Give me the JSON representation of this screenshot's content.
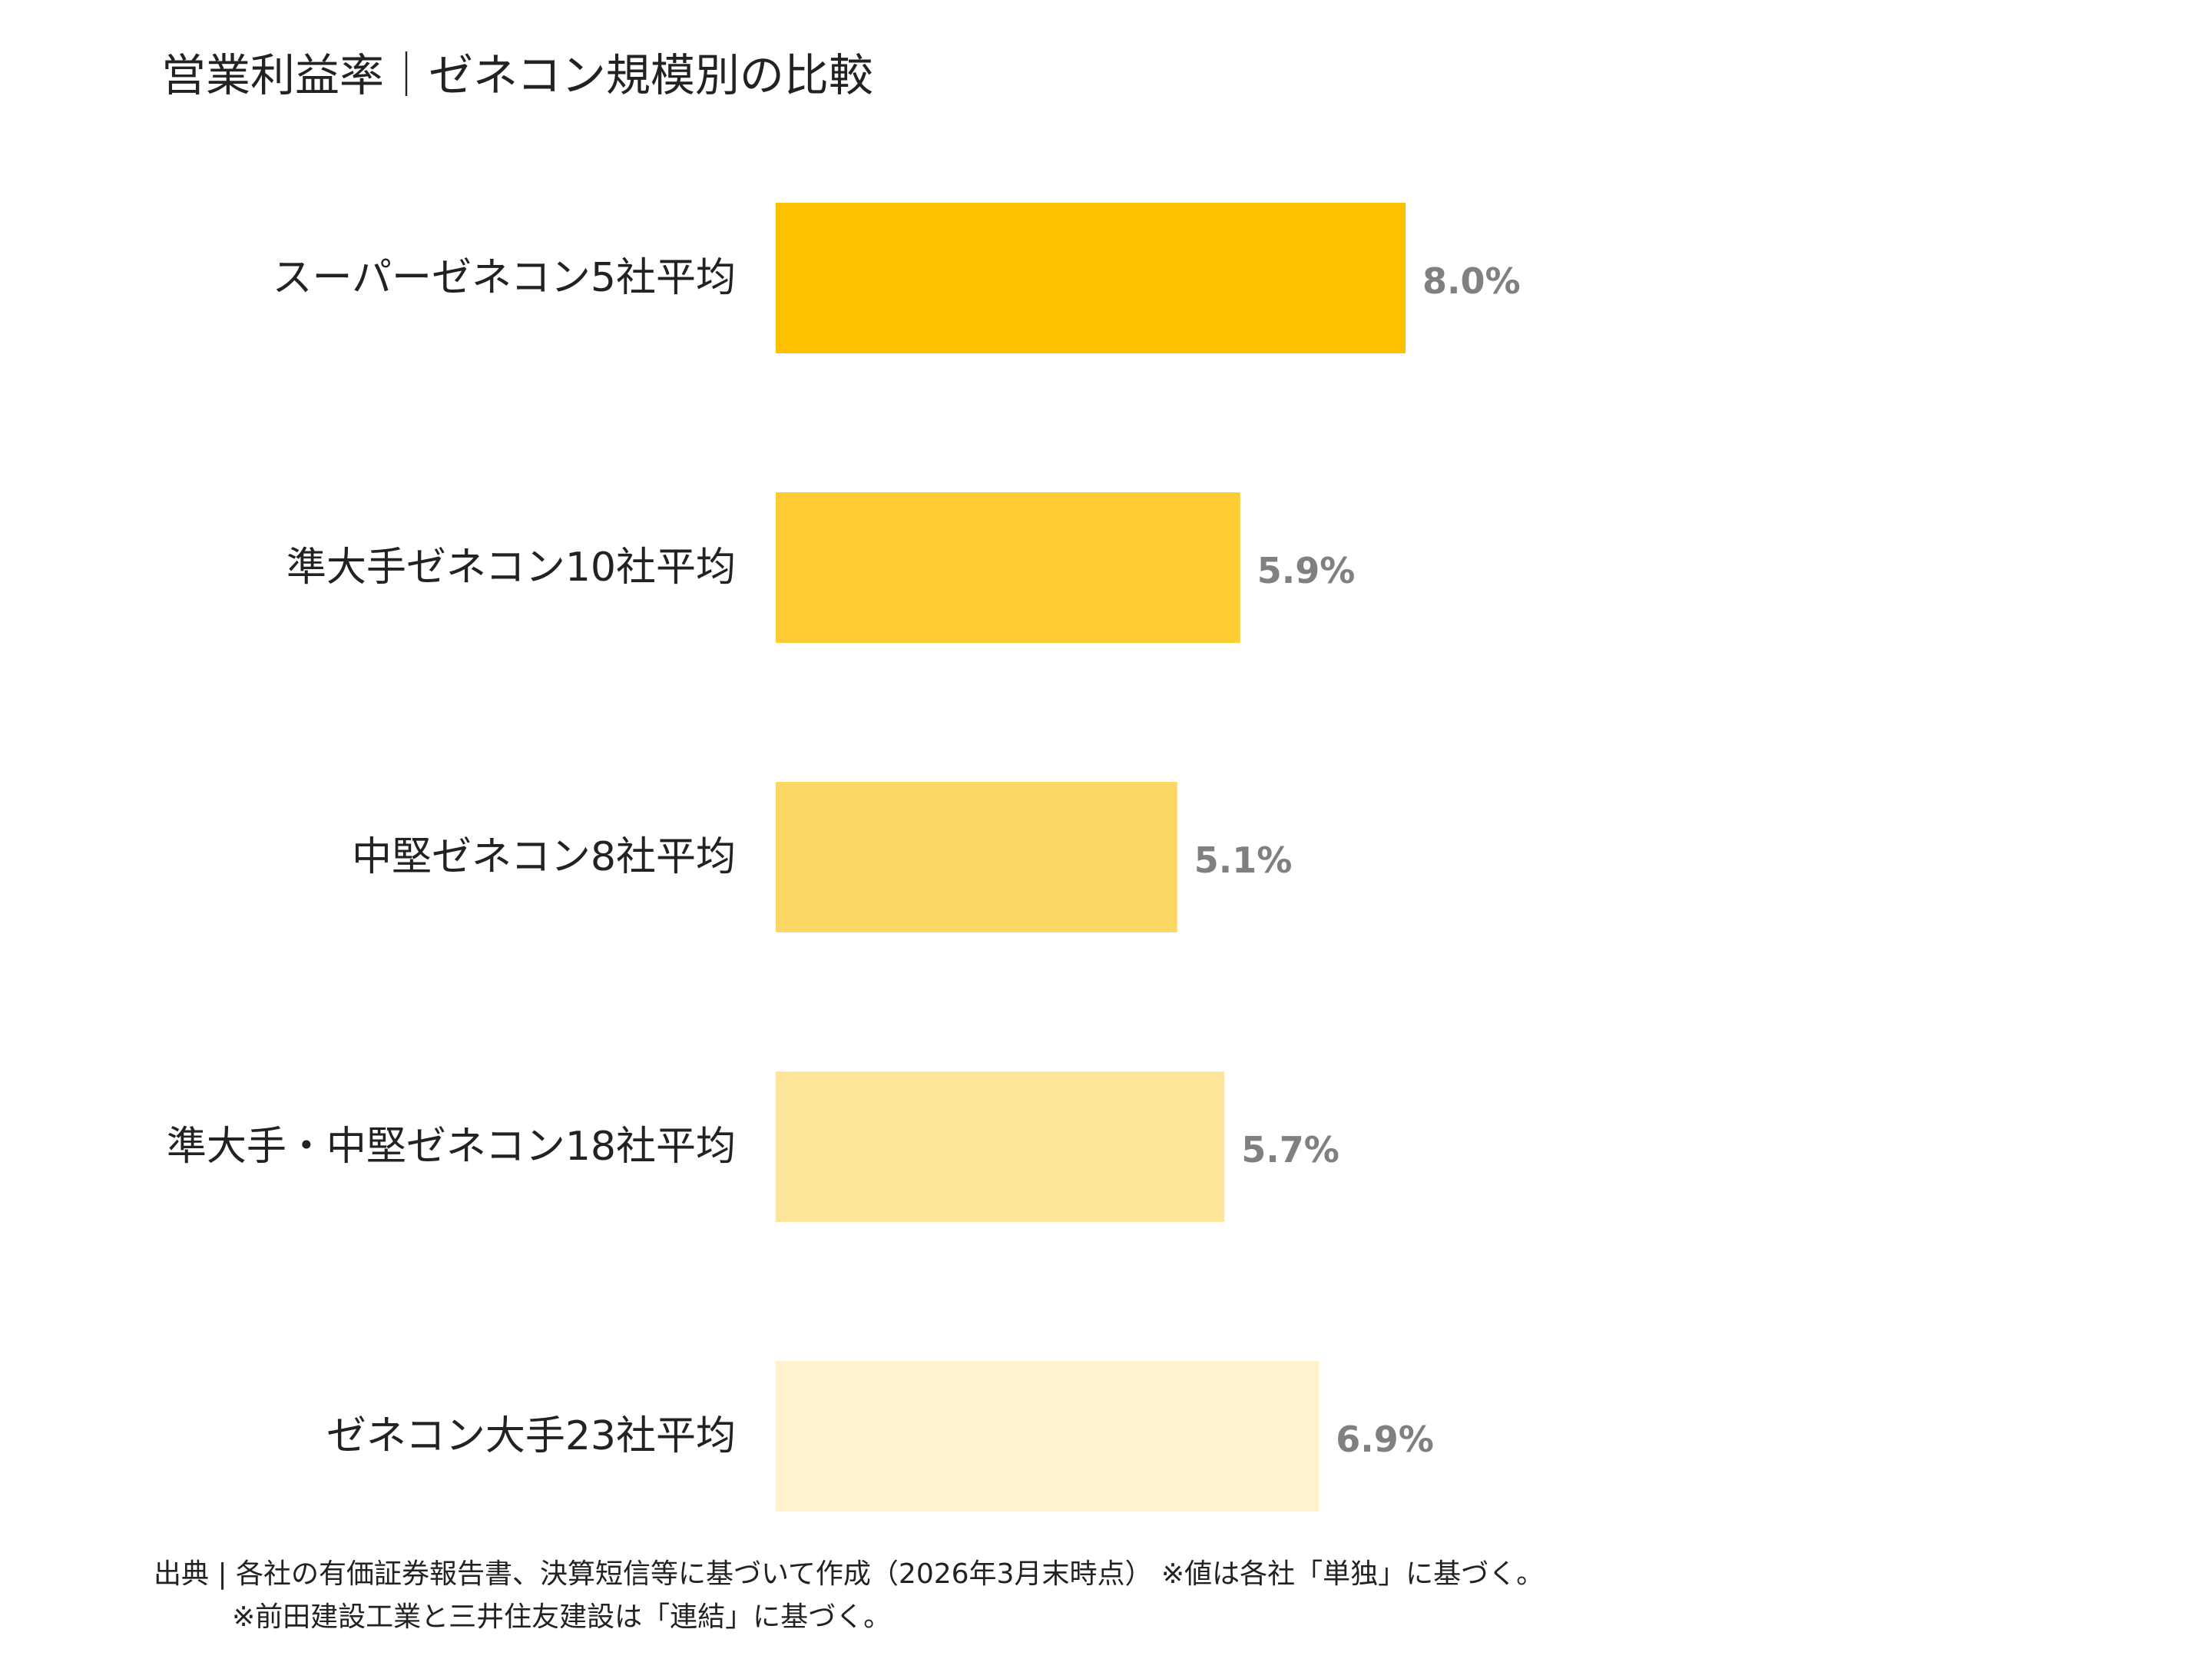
{
  "title": "営業利益率｜ゼネコン規模別の比較",
  "chart_data": {
    "type": "bar",
    "orientation": "horizontal",
    "title": "営業利益率｜ゼネコン規模別の比較",
    "categories": [
      "スーパーゼネコン5社平均",
      "準大手ゼネコン10社平均",
      "中堅ゼネコン8社平均",
      "準大手・中堅ゼネコン18社平均",
      "ゼネコン大手23社平均"
    ],
    "values": [
      8.0,
      5.9,
      5.1,
      5.7,
      6.9
    ],
    "value_labels": [
      "8.0%",
      "5.9%",
      "5.1%",
      "5.7%",
      "6.9%"
    ],
    "colors": [
      "#FFC000",
      "#FFCD33",
      "#FDD866",
      "#FEE599",
      "#FFF2CC"
    ],
    "unit": "%",
    "xlim": [
      0,
      10
    ],
    "xlabel": "",
    "ylabel": "",
    "grid": false,
    "legend": "none"
  },
  "footnote": {
    "line1": "出典 | 各社の有価証券報告書、決算短信等に基づいて作成（2026年3月末時点） ※値は各社「単独」に基づく。",
    "line2": "※前田建設工業と三井住友建設は「連結」に基づく。"
  }
}
